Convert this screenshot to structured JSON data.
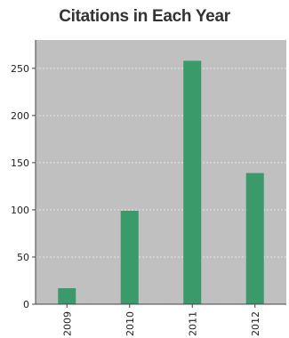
{
  "chart_data": {
    "type": "bar",
    "title": "Citations in Each Year",
    "xlabel": "",
    "ylabel": "",
    "categories": [
      "2009",
      "2010",
      "2011",
      "2012"
    ],
    "values": [
      17,
      99,
      258,
      139
    ],
    "ylim": [
      0,
      280
    ],
    "yticks": [
      0,
      50,
      100,
      150,
      200,
      250
    ],
    "grid": true,
    "colors": {
      "bar": "#3a9a6a",
      "plot_background": "#c0c0c0",
      "gridline": "#e4e4e4"
    }
  }
}
